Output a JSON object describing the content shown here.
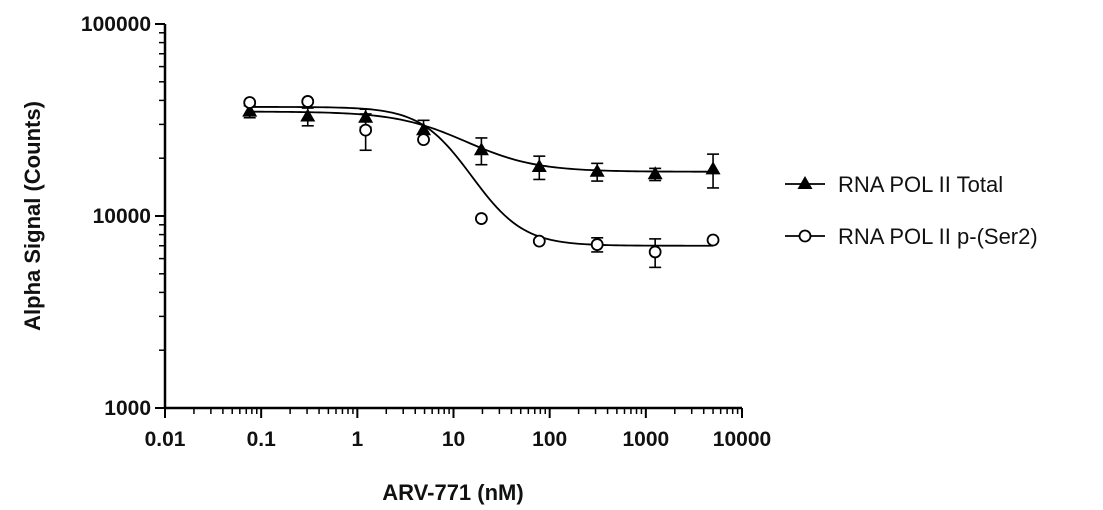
{
  "chart_data": {
    "type": "scatter",
    "xlabel": "ARV-771 (nM)",
    "ylabel": "Alpha Signal (Counts)",
    "xscale": "log",
    "yscale": "log",
    "xlim": [
      0.01,
      10000
    ],
    "ylim": [
      1000,
      100000
    ],
    "x_ticks": [
      "0.01",
      "0.1",
      "1",
      "10",
      "100",
      "1000",
      "10000"
    ],
    "y_ticks": [
      "1000",
      "10000",
      "100000"
    ],
    "x_tick_values": [
      0.01,
      0.1,
      1,
      10,
      100,
      1000,
      10000
    ],
    "y_tick_values": [
      1000,
      10000,
      100000
    ],
    "legend_position": "right",
    "series": [
      {
        "name": "RNA POL II Total",
        "marker": "filled-triangle",
        "color": "#000000",
        "x": [
          0.076,
          0.305,
          1.22,
          4.88,
          19.5,
          78,
          312,
          1250,
          5000
        ],
        "y": [
          35000,
          33000,
          32500,
          28000,
          22000,
          18000,
          17000,
          16500,
          17500
        ],
        "err": [
          2500,
          3500,
          3500,
          3500,
          3500,
          2500,
          1800,
          1200,
          3500
        ],
        "fit": {
          "top": 35000,
          "bottom": 17000,
          "ec50": 10,
          "hill": 1.2
        }
      },
      {
        "name": "RNA POL II p-(Ser2)",
        "marker": "open-circle",
        "color": "#000000",
        "x": [
          0.076,
          0.305,
          1.22,
          4.88,
          19.5,
          78,
          312,
          1250,
          5000
        ],
        "y": [
          39000,
          39500,
          28000,
          25000,
          9700,
          7400,
          7100,
          6500,
          7500
        ],
        "err": [
          0,
          0,
          6000,
          0,
          0,
          0,
          600,
          1100,
          0
        ],
        "fit": {
          "top": 37000,
          "bottom": 7000,
          "ec50": 9.5,
          "hill": 1.7
        }
      }
    ]
  }
}
